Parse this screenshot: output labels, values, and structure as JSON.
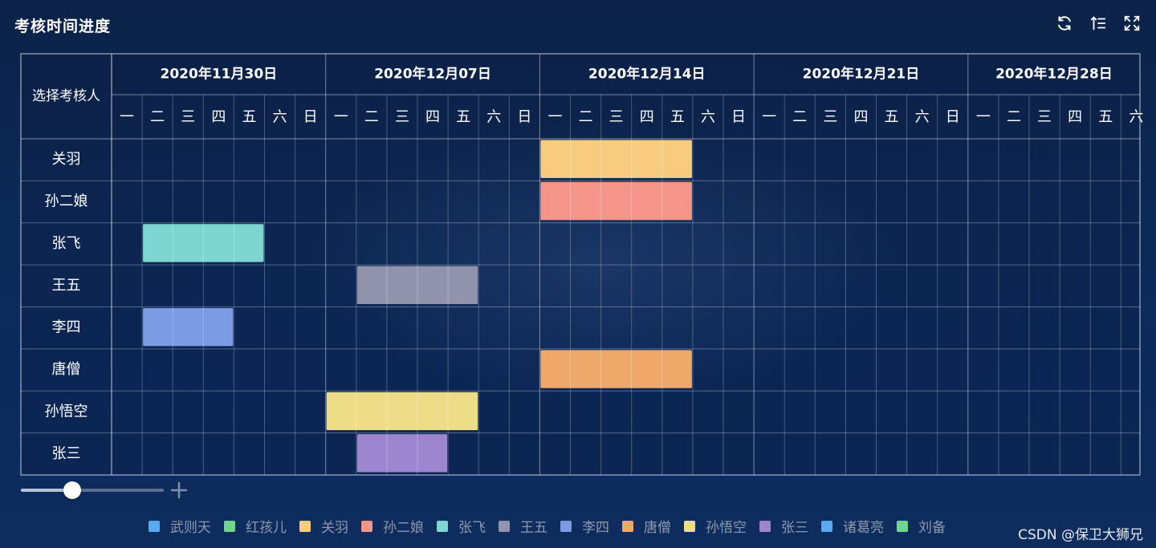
{
  "title": "考核时间进度",
  "toolbar": [
    {
      "name": "refresh-icon",
      "label": "refresh"
    },
    {
      "name": "sort-icon",
      "label": "sort"
    },
    {
      "name": "fullscreen-icon",
      "label": "fullscreen"
    }
  ],
  "chart_data": {
    "type": "gantt",
    "row_header": "选择考核人",
    "weekday_labels": [
      "一",
      "二",
      "三",
      "四",
      "五",
      "六",
      "日"
    ],
    "week_labels": [
      "2020年11月30日",
      "2020年12月07日",
      "2020年12月14日",
      "2020年12月21日",
      "2020年12月28日"
    ],
    "rows": [
      "关羽",
      "孙二娘",
      "张飞",
      "王五",
      "李四",
      "唐僧",
      "孙悟空",
      "张三"
    ],
    "tasks": [
      {
        "person": "关羽",
        "start": "2020-12-14",
        "end": "2020-12-18",
        "color": "#f8cc7f"
      },
      {
        "person": "孙二娘",
        "start": "2020-12-14",
        "end": "2020-12-18",
        "color": "#f5958a"
      },
      {
        "person": "张飞",
        "start": "2020-12-01",
        "end": "2020-12-04",
        "color": "#7dd6cf"
      },
      {
        "person": "王五",
        "start": "2020-12-08",
        "end": "2020-12-11",
        "color": "#9193ac"
      },
      {
        "person": "李四",
        "start": "2020-12-01",
        "end": "2020-12-03",
        "color": "#7b9be3"
      },
      {
        "person": "唐僧",
        "start": "2020-12-14",
        "end": "2020-12-18",
        "color": "#eea86a"
      },
      {
        "person": "孙悟空",
        "start": "2020-12-07",
        "end": "2020-12-11",
        "color": "#eddc88"
      },
      {
        "person": "张三",
        "start": "2020-12-08",
        "end": "2020-12-10",
        "color": "#9d85d0"
      }
    ]
  },
  "zoom": {
    "level": 0.36
  },
  "legend": [
    {
      "label": "武则天",
      "color": "#5aaaf0"
    },
    {
      "label": "红孩儿",
      "color": "#6fd68c"
    },
    {
      "label": "关羽",
      "color": "#f8cc7f"
    },
    {
      "label": "孙二娘",
      "color": "#f5958a"
    },
    {
      "label": "张飞",
      "color": "#7dd6cf"
    },
    {
      "label": "王五",
      "color": "#9193ac"
    },
    {
      "label": "李四",
      "color": "#7b9be3"
    },
    {
      "label": "唐僧",
      "color": "#eea86a"
    },
    {
      "label": "孙悟空",
      "color": "#eddc88"
    },
    {
      "label": "张三",
      "color": "#9d85d0"
    },
    {
      "label": "诸葛亮",
      "color": "#5aaaf0"
    },
    {
      "label": "刘备",
      "color": "#6fd68c"
    }
  ],
  "watermark": "CSDN @保卫大狮兄"
}
